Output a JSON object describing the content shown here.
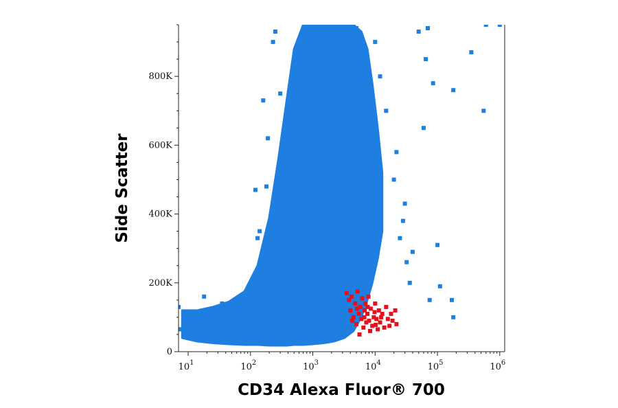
{
  "chart_data": {
    "type": "scatter",
    "xlabel": "CD34 Alexa Fluor® 700",
    "ylabel": "Side Scatter",
    "x_scale": "log",
    "xlim": [
      7,
      1200000
    ],
    "ylim": [
      0,
      950000
    ],
    "x_ticks": [
      {
        "value": 10,
        "base": "10",
        "exp": "1"
      },
      {
        "value": 100,
        "base": "10",
        "exp": "2"
      },
      {
        "value": 1000,
        "base": "10",
        "exp": "3"
      },
      {
        "value": 10000,
        "base": "10",
        "exp": "4"
      },
      {
        "value": 100000,
        "base": "10",
        "exp": "5"
      },
      {
        "value": 1000000,
        "base": "10",
        "exp": "6"
      }
    ],
    "y_ticks": [
      {
        "value": 0,
        "label": "0"
      },
      {
        "value": 200000,
        "label": "200K"
      },
      {
        "value": 400000,
        "label": "400K"
      },
      {
        "value": 600000,
        "label": "600K"
      },
      {
        "value": 800000,
        "label": "800K"
      }
    ],
    "grid": false,
    "legend": "none",
    "series": [
      {
        "color": "#1f7fe0",
        "points": [
          [
            7,
            130000
          ],
          [
            7.5,
            65000
          ],
          [
            12,
            45000
          ],
          [
            18,
            160000
          ],
          [
            35,
            140000
          ],
          [
            60,
            130000
          ],
          [
            120,
            470000
          ],
          [
            130,
            330000
          ],
          [
            140,
            350000
          ],
          [
            150,
            250000
          ],
          [
            160,
            730000
          ],
          [
            180,
            480000
          ],
          [
            190,
            620000
          ],
          [
            210,
            370000
          ],
          [
            230,
            900000
          ],
          [
            250,
            930000
          ],
          [
            300,
            750000
          ],
          [
            4000,
            930000
          ],
          [
            5000,
            940000
          ],
          [
            10000,
            900000
          ],
          [
            12000,
            800000
          ],
          [
            15000,
            700000
          ],
          [
            20000,
            500000
          ],
          [
            22000,
            580000
          ],
          [
            25000,
            330000
          ],
          [
            28000,
            380000
          ],
          [
            30000,
            430000
          ],
          [
            32000,
            260000
          ],
          [
            36000,
            200000
          ],
          [
            40000,
            290000
          ],
          [
            50000,
            930000
          ],
          [
            60000,
            650000
          ],
          [
            65000,
            850000
          ],
          [
            70000,
            940000
          ],
          [
            75000,
            150000
          ],
          [
            85000,
            780000
          ],
          [
            100000,
            310000
          ],
          [
            110000,
            190000
          ],
          [
            170000,
            150000
          ],
          [
            180000,
            100000
          ],
          [
            180000,
            760000
          ],
          [
            350000,
            870000
          ],
          [
            550000,
            700000
          ],
          [
            600000,
            950000
          ],
          [
            1000000,
            950000
          ]
        ],
        "main_population": [
          {
            "x": 8,
            "lo": 40000,
            "hi": 120000
          },
          {
            "x": 14,
            "lo": 30000,
            "hi": 120000
          },
          {
            "x": 25,
            "lo": 25000,
            "hi": 130000
          },
          {
            "x": 45,
            "lo": 22000,
            "hi": 145000
          },
          {
            "x": 80,
            "lo": 20000,
            "hi": 175000
          },
          {
            "x": 130,
            "lo": 20000,
            "hi": 250000
          },
          {
            "x": 200,
            "lo": 18000,
            "hi": 390000
          },
          {
            "x": 280,
            "lo": 18000,
            "hi": 560000
          },
          {
            "x": 380,
            "lo": 18000,
            "hi": 730000
          },
          {
            "x": 500,
            "lo": 20000,
            "hi": 880000
          },
          {
            "x": 700,
            "lo": 20000,
            "hi": 950000
          },
          {
            "x": 1000,
            "lo": 22000,
            "hi": 950000
          },
          {
            "x": 1500,
            "lo": 25000,
            "hi": 950000
          },
          {
            "x": 2200,
            "lo": 30000,
            "hi": 950000
          },
          {
            "x": 3200,
            "lo": 40000,
            "hi": 950000
          },
          {
            "x": 4500,
            "lo": 60000,
            "hi": 950000
          },
          {
            "x": 6000,
            "lo": 100000,
            "hi": 930000
          },
          {
            "x": 7500,
            "lo": 150000,
            "hi": 880000
          },
          {
            "x": 9000,
            "lo": 200000,
            "hi": 780000
          },
          {
            "x": 11000,
            "lo": 270000,
            "hi": 650000
          },
          {
            "x": 13000,
            "lo": 350000,
            "hi": 520000
          }
        ]
      },
      {
        "color": "#e4101a",
        "points": [
          [
            3500,
            170000
          ],
          [
            3800,
            150000
          ],
          [
            4000,
            120000
          ],
          [
            4200,
            160000
          ],
          [
            4500,
            100000
          ],
          [
            4800,
            140000
          ],
          [
            5000,
            80000
          ],
          [
            5200,
            175000
          ],
          [
            5500,
            110000
          ],
          [
            5800,
            130000
          ],
          [
            6000,
            95000
          ],
          [
            6200,
            155000
          ],
          [
            6500,
            70000
          ],
          [
            6800,
            120000
          ],
          [
            7000,
            140000
          ],
          [
            7200,
            85000
          ],
          [
            7500,
            110000
          ],
          [
            7800,
            160000
          ],
          [
            8000,
            90000
          ],
          [
            8500,
            125000
          ],
          [
            9000,
            75000
          ],
          [
            9500,
            100000
          ],
          [
            10000,
            140000
          ],
          [
            10500,
            95000
          ],
          [
            11000,
            65000
          ],
          [
            11500,
            120000
          ],
          [
            12000,
            85000
          ],
          [
            13000,
            110000
          ],
          [
            14000,
            70000
          ],
          [
            15000,
            130000
          ],
          [
            16000,
            95000
          ],
          [
            17000,
            75000
          ],
          [
            18000,
            110000
          ],
          [
            19000,
            90000
          ],
          [
            21000,
            120000
          ],
          [
            22000,
            80000
          ],
          [
            5600,
            50000
          ],
          [
            8300,
            60000
          ],
          [
            4300,
            90000
          ],
          [
            6700,
            100000
          ],
          [
            9800,
            115000
          ],
          [
            12500,
            100000
          ],
          [
            7600,
            130000
          ],
          [
            5100,
            125000
          ],
          [
            10200,
            78000
          ]
        ]
      }
    ]
  }
}
